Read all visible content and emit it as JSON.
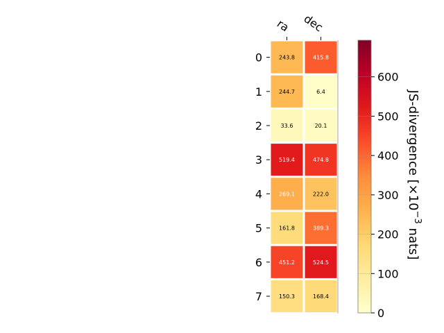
{
  "chart_data": {
    "type": "heatmap",
    "columns": [
      "ra",
      "dec"
    ],
    "rows": [
      "0",
      "1",
      "2",
      "3",
      "4",
      "5",
      "6",
      "7"
    ],
    "values": [
      [
        243.8,
        415.8
      ],
      [
        244.7,
        6.4
      ],
      [
        33.6,
        20.1
      ],
      [
        519.4,
        474.8
      ],
      [
        269.1,
        222.0
      ],
      [
        161.8,
        389.3
      ],
      [
        451.2,
        524.5
      ],
      [
        150.3,
        168.4
      ]
    ],
    "colorbar": {
      "label_main": "JS-divergence [×10",
      "label_exp": "−3",
      "label_unit": " nats]",
      "range": [
        0,
        693
      ],
      "ticks": [
        0,
        100,
        200,
        300,
        400,
        500,
        600
      ],
      "colormap": "YlOrRd"
    }
  }
}
